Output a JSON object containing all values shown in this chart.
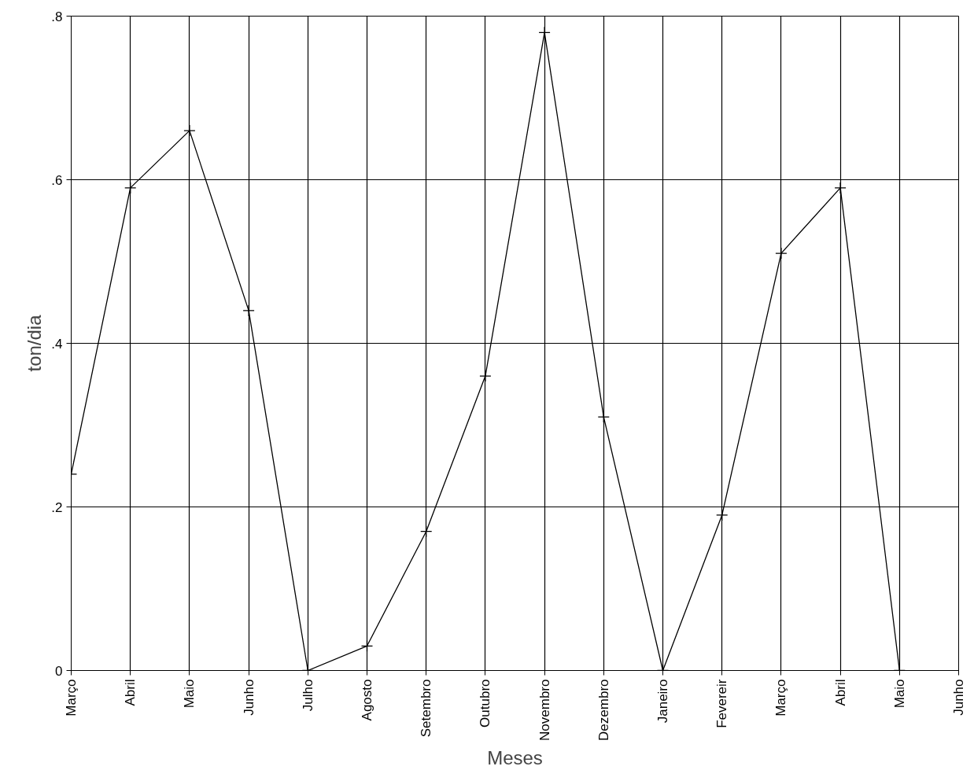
{
  "chart_data": {
    "type": "line",
    "xlabel": "Meses",
    "ylabel": "ton/dia",
    "categories": [
      "Março",
      "Abril",
      "Maio",
      "Junho",
      "Julho",
      "Agosto",
      "Setembro",
      "Outubro",
      "Novembro",
      "Dezembro",
      "Janeiro",
      "Fevereir",
      "Março",
      "Abril",
      "Maio",
      "Junho"
    ],
    "series": [
      {
        "color": "#000000",
        "values": [
          0.24,
          0.59,
          0.66,
          0.44,
          0.0,
          0.03,
          0.17,
          0.36,
          0.78,
          0.31,
          0.0,
          0.19,
          0.51,
          0.59,
          0.0,
          null
        ]
      }
    ],
    "ylim": [
      0,
      0.8
    ],
    "yticks": [
      {
        "value": 0,
        "label": "0"
      },
      {
        "value": 0.2,
        "label": ".2"
      },
      {
        "value": 0.4,
        "label": ".4"
      },
      {
        "value": 0.6,
        "label": ".6"
      },
      {
        "value": 0.8,
        "label": ".8"
      }
    ],
    "grid": true,
    "marker": "cross",
    "line_style": "solid"
  }
}
